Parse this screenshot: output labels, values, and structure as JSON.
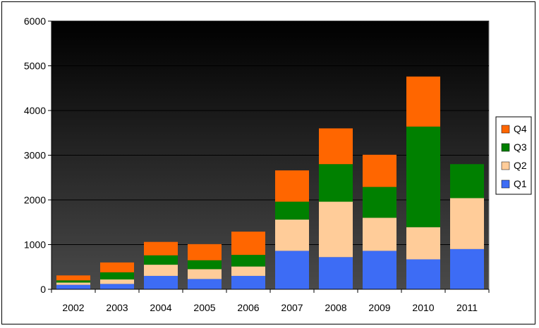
{
  "chart_data": {
    "type": "bar",
    "stacked": true,
    "categories": [
      "2002",
      "2003",
      "2004",
      "2005",
      "2006",
      "2007",
      "2008",
      "2009",
      "2010",
      "2011"
    ],
    "series": [
      {
        "name": "Q1",
        "color": "#3d6cf5",
        "values": [
          100,
          120,
          300,
          230,
          300,
          860,
          720,
          860,
          670,
          900
        ]
      },
      {
        "name": "Q2",
        "color": "#ffcc99",
        "values": [
          50,
          100,
          250,
          220,
          210,
          700,
          1240,
          740,
          720,
          1140
        ]
      },
      {
        "name": "Q3",
        "color": "#008000",
        "values": [
          50,
          160,
          210,
          200,
          260,
          400,
          840,
          690,
          2250,
          760
        ]
      },
      {
        "name": "Q4",
        "color": "#ff6600",
        "values": [
          110,
          220,
          300,
          360,
          520,
          700,
          800,
          720,
          1120,
          0
        ]
      }
    ],
    "title": "",
    "xlabel": "",
    "ylabel": "",
    "ylim": [
      0,
      6000
    ],
    "yticks": [
      "0",
      "1000",
      "2000",
      "3000",
      "4000",
      "5000",
      "6000"
    ],
    "grid": true,
    "plot_background": "dark gradient",
    "legend": {
      "placement": "right",
      "order": [
        "Q4",
        "Q3",
        "Q2",
        "Q1"
      ]
    }
  }
}
